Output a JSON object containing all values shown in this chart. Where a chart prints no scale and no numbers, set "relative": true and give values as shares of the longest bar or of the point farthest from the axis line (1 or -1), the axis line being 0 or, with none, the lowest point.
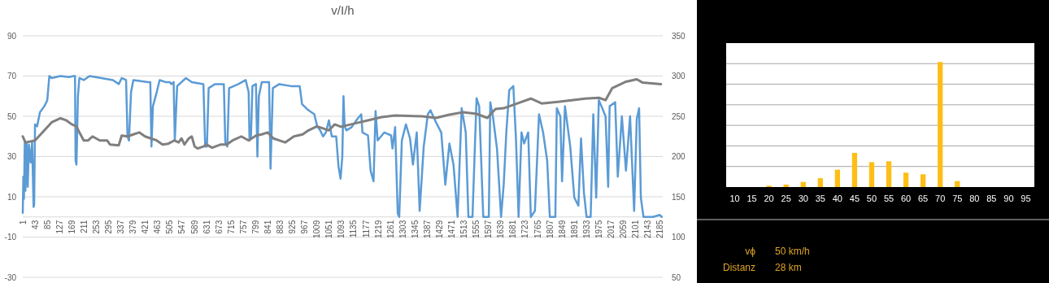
{
  "chart_data": [
    {
      "type": "line",
      "title": "v/I/h",
      "xlim": [
        1,
        2194
      ],
      "xticks": [
        1,
        43,
        85,
        127,
        169,
        211,
        253,
        295,
        337,
        379,
        421,
        463,
        505,
        547,
        589,
        631,
        673,
        715,
        757,
        799,
        841,
        883,
        925,
        967,
        1009,
        1051,
        1093,
        1135,
        1177,
        1219,
        1261,
        1303,
        1345,
        1387,
        1429,
        1471,
        1513,
        1555,
        1597,
        1639,
        1681,
        1723,
        1765,
        1807,
        1849,
        1891,
        1933,
        1975,
        2017,
        2059,
        2101,
        2143,
        2185
      ],
      "ylim": [
        -30,
        90
      ],
      "yticks": [
        -30,
        -10,
        10,
        30,
        50,
        70,
        90
      ],
      "y2lim": [
        50,
        350
      ],
      "y2ticks": [
        50,
        100,
        150,
        200,
        250,
        300,
        350
      ],
      "grid": "y",
      "series": [
        {
          "color": "#5b9bd5",
          "x": [
            1,
            3,
            5,
            8,
            10,
            14,
            18,
            22,
            28,
            33,
            38,
            40,
            43,
            50,
            60,
            75,
            85,
            92,
            100,
            130,
            160,
            175,
            180,
            182,
            185,
            190,
            195,
            210,
            230,
            270,
            310,
            330,
            340,
            355,
            360,
            365,
            372,
            380,
            430,
            438,
            442,
            447,
            460,
            470,
            490,
            505,
            510,
            518,
            522,
            530,
            560,
            580,
            620,
            626,
            632,
            638,
            660,
            690,
            695,
            702,
            708,
            740,
            765,
            775,
            778,
            783,
            788,
            800,
            805,
            810,
            820,
            845,
            850,
            858,
            880,
            920,
            950,
            958,
            980,
            1000,
            1010,
            1020,
            1030,
            1040,
            1050,
            1060,
            1075,
            1083,
            1090,
            1096,
            1100,
            1104,
            1110,
            1128,
            1147,
            1161,
            1165,
            1184,
            1193,
            1203,
            1210,
            1217,
            1240,
            1263,
            1268,
            1277,
            1286,
            1291,
            1300,
            1314,
            1328,
            1338,
            1351,
            1361,
            1375,
            1389,
            1398,
            1417,
            1435,
            1449,
            1463,
            1477,
            1491,
            1505,
            1519,
            1528,
            1542,
            1556,
            1565,
            1579,
            1598,
            1603,
            1612,
            1626,
            1640,
            1649,
            1658,
            1668,
            1682,
            1691,
            1700,
            1710,
            1719,
            1733,
            1742,
            1756,
            1770,
            1784,
            1798,
            1807,
            1826,
            1831,
            1843,
            1849,
            1859,
            1877,
            1891,
            1905,
            1914,
            1924,
            1933,
            1947,
            1956,
            1966,
            1975,
            1984,
            1998,
            2007,
            2012,
            2031,
            2040,
            2054,
            2068,
            2082,
            2096,
            2105,
            2113,
            2119,
            2128,
            2161,
            2184,
            2191
          ],
          "values": [
            2,
            20,
            9,
            38,
            13,
            37,
            15,
            36,
            27,
            37,
            5,
            6,
            46,
            45,
            52,
            55,
            58,
            70,
            69,
            70,
            69.5,
            70,
            70,
            28,
            26,
            60,
            69,
            68,
            70,
            69,
            68,
            66,
            69,
            68,
            40,
            38,
            62,
            68,
            67,
            67,
            35,
            55,
            62,
            68,
            67,
            67,
            66,
            67,
            38,
            65,
            69,
            67,
            66,
            35,
            35,
            64,
            66,
            66,
            37,
            35,
            64,
            66,
            68,
            62,
            38,
            40,
            65,
            66,
            30,
            60,
            67,
            67,
            24,
            64,
            66,
            65,
            65,
            56,
            53,
            51,
            45,
            43,
            40,
            42,
            48,
            40,
            40,
            25,
            19,
            30,
            60,
            45,
            43,
            44.6,
            48.6,
            51,
            42,
            40.5,
            23,
            17.7,
            52.6,
            38,
            42,
            40.5,
            34,
            44.6,
            1.6,
            0,
            38,
            46,
            39,
            26,
            42,
            3,
            35,
            51,
            53,
            47,
            42,
            16,
            36.5,
            26,
            0,
            54,
            42,
            0,
            0,
            59,
            55,
            0,
            0,
            57,
            50,
            34,
            0,
            16,
            42,
            63,
            65,
            39,
            0,
            42,
            36.5,
            42,
            0,
            3,
            51,
            42,
            28,
            0,
            0,
            54,
            50,
            17.7,
            55,
            35,
            9.6,
            5.6,
            39,
            12,
            0,
            0,
            51,
            9.6,
            58,
            55,
            50,
            15,
            55,
            57,
            20,
            50,
            23,
            50,
            3,
            48.6,
            54,
            9.6,
            0,
            0,
            1,
            0
          ]
        },
        {
          "color": "#7f7f7f",
          "axis": "y2",
          "x": [
            1,
            10,
            43,
            100,
            130,
            150,
            169,
            185,
            195,
            210,
            225,
            240,
            265,
            290,
            300,
            330,
            340,
            360,
            380,
            400,
            420,
            440,
            460,
            480,
            500,
            520,
            535,
            545,
            555,
            570,
            580,
            590,
            600,
            620,
            630,
            650,
            680,
            700,
            720,
            750,
            775,
            800,
            820,
            840,
            860,
            880,
            900,
            930,
            960,
            980,
            1009,
            1030,
            1050,
            1070,
            1091,
            1138,
            1184,
            1231,
            1277,
            1370,
            1417,
            1463,
            1510,
            1556,
            1593,
            1621,
            1649,
            1696,
            1742,
            1779,
            1835,
            1882,
            1928,
            1975,
            1998,
            2021,
            2068,
            2105,
            2124,
            2188
          ],
          "values": [
            225,
            217.5,
            220,
            242.5,
            247.5,
            245,
            240,
            237.5,
            230,
            220,
            220,
            225,
            220,
            220,
            215,
            214,
            226,
            225,
            227.5,
            230,
            225,
            222.5,
            220,
            215,
            216,
            220,
            217.5,
            222.5,
            215,
            222.5,
            225,
            212.5,
            210,
            212.5,
            215,
            211,
            215,
            215,
            220,
            225,
            220,
            226,
            227.5,
            230,
            222.5,
            220,
            217.5,
            225,
            227.5,
            232.5,
            237.5,
            235,
            232.5,
            240,
            237,
            241,
            245,
            249,
            251,
            250,
            248,
            252,
            255,
            253,
            248,
            259,
            260,
            266,
            272,
            266,
            268,
            270,
            272,
            273,
            270,
            285,
            293,
            296,
            292,
            290
          ]
        }
      ]
    },
    {
      "type": "bar",
      "relative": true,
      "categories": [
        "10",
        "15",
        "20",
        "25",
        "30",
        "35",
        "40",
        "45",
        "50",
        "55",
        "60",
        "65",
        "70",
        "75",
        "80",
        "85",
        "90",
        "95"
      ],
      "values": [
        0,
        0,
        0.011,
        0.02,
        0.041,
        0.071,
        0.139,
        0.273,
        0.199,
        0.206,
        0.115,
        0.102,
        1,
        0.048,
        0,
        0,
        0,
        0
      ],
      "color": "#fdbf16",
      "grid": true,
      "annotations": [
        "vϕ",
        "50 km/h",
        "Distanz",
        "28 km"
      ]
    }
  ]
}
